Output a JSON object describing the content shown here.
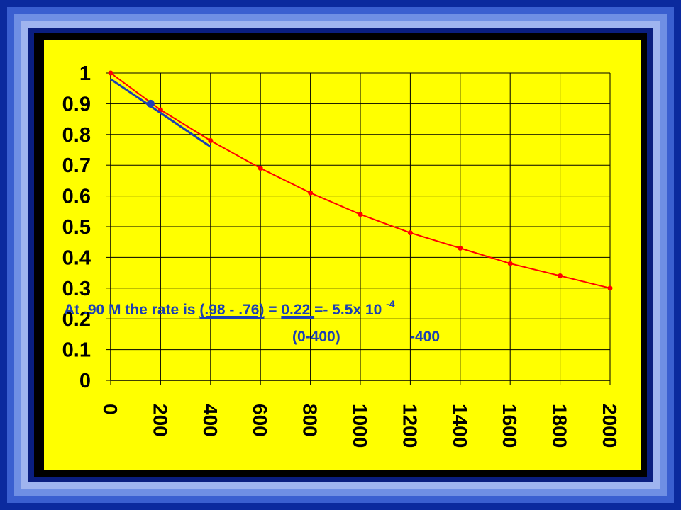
{
  "chart_data": {
    "type": "line",
    "x": [
      0,
      200,
      400,
      600,
      800,
      1000,
      1200,
      1400,
      1600,
      1800,
      2000
    ],
    "series": [
      {
        "values": [
          1.0,
          0.88,
          0.78,
          0.69,
          0.61,
          0.54,
          0.48,
          0.43,
          0.38,
          0.34,
          0.3
        ]
      }
    ],
    "x_tick_labels": [
      "0",
      "200",
      "400",
      "600",
      "800",
      "1000",
      "1200",
      "1400",
      "1600",
      "1800",
      "2000"
    ],
    "y_tick_labels": [
      "0",
      "0.1",
      "0.2",
      "0.3",
      "0.4",
      "0.5",
      "0.6",
      "0.7",
      "0.8",
      "0.9",
      "1"
    ],
    "xlim": [
      0,
      2000
    ],
    "ylim": [
      0,
      1
    ],
    "grid": true,
    "tangent_line": {
      "x": [
        0,
        400
      ],
      "y": [
        0.98,
        0.76
      ]
    },
    "highlight_point": {
      "x": 160,
      "y": 0.9
    },
    "annotation": {
      "line1_prefix": "At  .90 M  the rate is ",
      "numerator": "(.98 - .76)",
      "equals": " = ",
      "value": " 0.22 ",
      "result": " =- 5.5x 10 ",
      "exponent": "-4",
      "denominator": "(0-400)",
      "denominator_value": "-400"
    },
    "colors": {
      "background": "#ffff00",
      "series": "#ff0000",
      "tangent": "#1b3fb4",
      "grid": "#000000",
      "annotation": "#1b3fb4",
      "frame": "#0a2bb0"
    }
  }
}
